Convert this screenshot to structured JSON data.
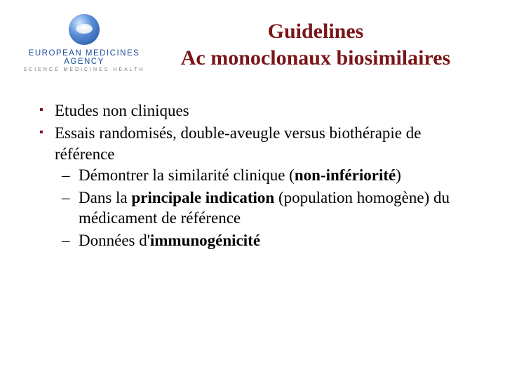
{
  "colors": {
    "title": "#7a1518",
    "bullet": "#7a1518",
    "body_text": "#000000",
    "logo_blue": "#1b4e9b",
    "logo_grey": "#7a7a7a",
    "background": "#ffffff"
  },
  "typography": {
    "title_fontsize_pt": 22,
    "title_weight": "bold",
    "body_fontsize_pt": 17,
    "font_family": "Times New Roman"
  },
  "logo": {
    "main": "EUROPEAN MEDICINES AGENCY",
    "sub": "SCIENCE   MEDICINES   HEALTH"
  },
  "title": {
    "line1": "Guidelines",
    "line2": "Ac monoclonaux biosimilaires"
  },
  "bullets": [
    {
      "text": "Etudes non cliniques"
    },
    {
      "text": "Essais randomisés, double-aveugle versus biothérapie de référence",
      "subs": [
        {
          "pre": "Démontrer la similarité clinique (",
          "bold": "non‐infériorité",
          "post": ")"
        },
        {
          "pre": " Dans la ",
          "bold": "principale indication",
          "post": " (population homogène) du médicament de référence"
        },
        {
          "pre": " Données d'",
          "bold": "immunogénicité",
          "post": ""
        }
      ]
    }
  ]
}
